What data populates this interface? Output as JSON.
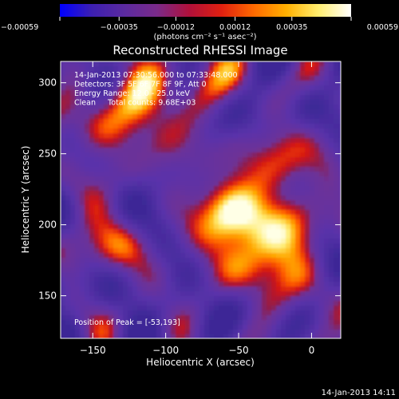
{
  "chart_data": {
    "type": "heatmap",
    "title": "Reconstructed RHESSI Image",
    "xlabel": "Heliocentric X (arcsec)",
    "ylabel": "Heliocentric Y (arcsec)",
    "xlim": [
      -172,
      20
    ],
    "ylim": [
      120,
      315
    ],
    "x_ticks": [
      {
        "value": -150,
        "label": "−150"
      },
      {
        "value": -100,
        "label": "−100"
      },
      {
        "value": -50,
        "label": "−50"
      },
      {
        "value": 0,
        "label": "0"
      }
    ],
    "y_ticks": [
      {
        "value": 150,
        "label": "150"
      },
      {
        "value": 200,
        "label": "200"
      },
      {
        "value": 250,
        "label": "250"
      },
      {
        "value": 300,
        "label": "300"
      }
    ],
    "colorbar": {
      "range": [
        -0.00059,
        0.00059
      ],
      "ticks": [
        {
          "value": -0.00059,
          "label": "−0.00059"
        },
        {
          "value": -0.00035,
          "label": "−0.00035"
        },
        {
          "value": -0.00012,
          "label": "−0.00012"
        },
        {
          "value": 0.00012,
          "label": "0.00012"
        },
        {
          "value": 0.00035,
          "label": "0.00035"
        },
        {
          "value": 0.00059,
          "label": "0.00059"
        }
      ],
      "unit_label": "(photons cm⁻² s⁻¹ asec⁻²)",
      "colors": [
        "#0000ff",
        "#3d1fb0",
        "#5b2aa0",
        "#7a2a8a",
        "#b0103a",
        "#e02010",
        "#ff6a00",
        "#ffb000",
        "#ffee70",
        "#ffffff"
      ]
    },
    "annotations": [
      "14-Jan-2013 07:30:56.000 to 07:33:48.000",
      "Detectors: 3F 5F 6F 7F 8F 9F, Att 0",
      "Energy Range: 12.0 - 25.0 keV",
      "Clean     Total counts: 9.68E+03"
    ],
    "peak_label": "Position of Peak = [-53,193]",
    "bright_regions": [
      {
        "x": -58,
        "y": 207,
        "value": 0.00059
      },
      {
        "x": -42,
        "y": 175,
        "value": 0.00052
      },
      {
        "x": -22,
        "y": 238,
        "value": 0.00046
      },
      {
        "x": -12,
        "y": 195,
        "value": 0.0004
      },
      {
        "x": -120,
        "y": 295,
        "value": 0.00042
      },
      {
        "x": -150,
        "y": 265,
        "value": 0.00038
      },
      {
        "x": -140,
        "y": 185,
        "value": 0.00036
      },
      {
        "x": -70,
        "y": 300,
        "value": 0.0003
      },
      {
        "x": -95,
        "y": 255,
        "value": 0.00026
      },
      {
        "x": 8,
        "y": 140,
        "value": 0.00022
      }
    ]
  },
  "footer": {
    "date": "14-Jan-2013 14:11"
  }
}
